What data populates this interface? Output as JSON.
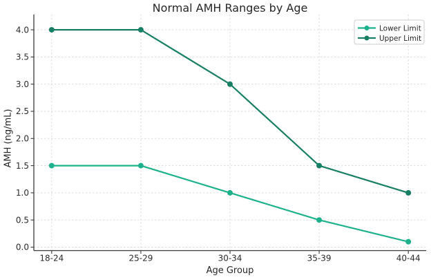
{
  "chart_data": {
    "type": "line",
    "title": "Normal AMH Ranges by Age",
    "xlabel": "Age Group",
    "ylabel": "AMH (ng/mL)",
    "categories": [
      "18-24",
      "25-29",
      "30-34",
      "35-39",
      "40-44"
    ],
    "series": [
      {
        "name": "Lower Limit",
        "values": [
          1.5,
          1.5,
          1.0,
          0.5,
          0.1
        ],
        "color": "#1eb28c"
      },
      {
        "name": "Upper Limit",
        "values": [
          4.0,
          4.0,
          3.0,
          1.5,
          1.0
        ],
        "color": "#177f63"
      }
    ],
    "yticks": [
      0.0,
      0.5,
      1.0,
      1.5,
      2.0,
      2.5,
      3.0,
      3.5,
      4.0
    ],
    "ytick_labels": [
      "0.0",
      "0.5",
      "1.0",
      "1.5",
      "2.0",
      "2.5",
      "3.0",
      "3.5",
      "4.0"
    ],
    "ylim": [
      0,
      4
    ],
    "grid": true,
    "marker": "circle",
    "legend": {
      "position": "upper-right",
      "entries": [
        "Lower Limit",
        "Upper Limit"
      ]
    }
  },
  "style": {
    "background": "#ffffff",
    "grid_color": "#d9d9d9",
    "spine_color": "#3a3a3a",
    "text_color": "#262626",
    "tick_text_color": "#2b2b2b",
    "legend_border": "#cccccc",
    "legend_background": "#ffffff"
  }
}
